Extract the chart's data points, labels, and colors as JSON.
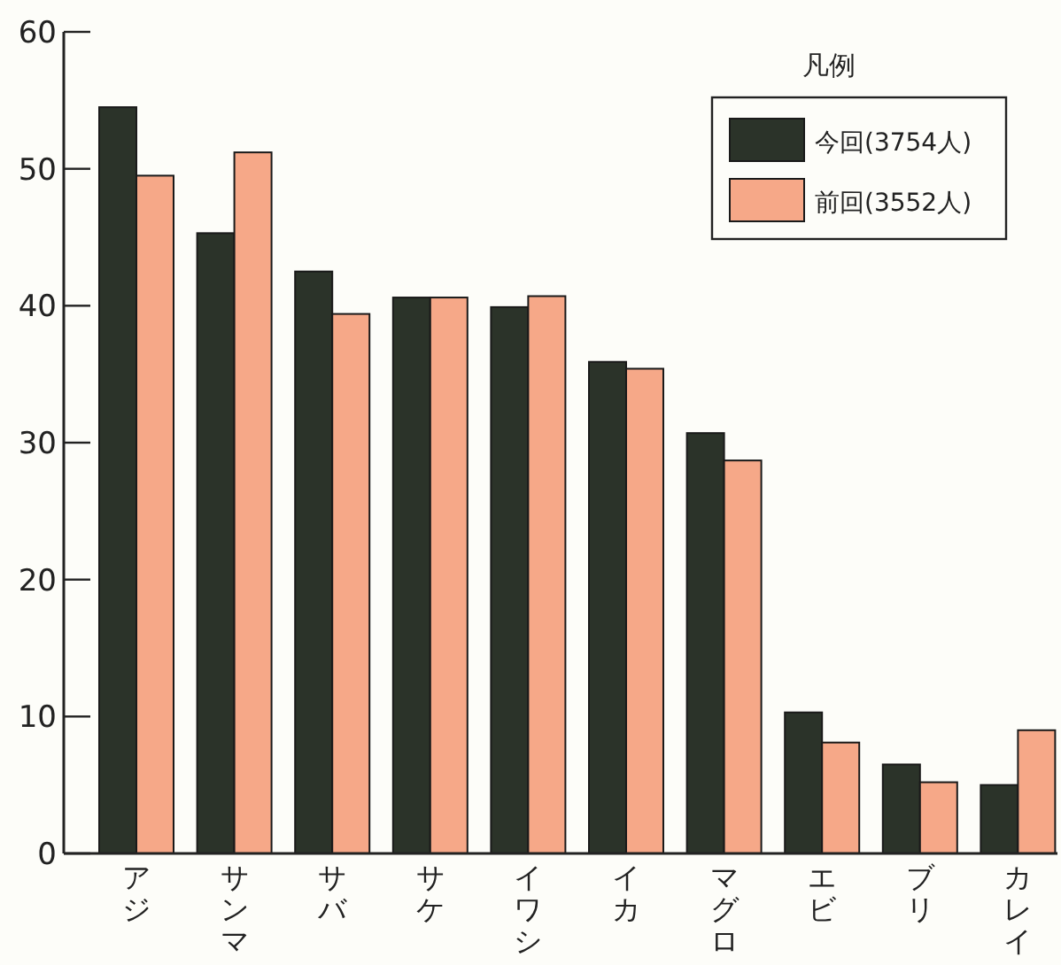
{
  "chart_data": {
    "type": "bar",
    "legend_title": "凡例",
    "legend": "top right",
    "categories": [
      "アジ",
      "サンマ",
      "サバ",
      "サケ",
      "イワシ",
      "イカ",
      "マグロ",
      "エビ",
      "ブリ",
      "カレイ"
    ],
    "series": [
      {
        "name": "今回(3754人)",
        "color": "#2b3329",
        "values": [
          54.5,
          45.3,
          42.5,
          40.6,
          39.9,
          35.9,
          30.7,
          10.3,
          6.5,
          5.0
        ]
      },
      {
        "name": "前回(3552人)",
        "color": "#f6a888",
        "values": [
          49.5,
          51.2,
          39.4,
          40.6,
          40.7,
          35.4,
          28.7,
          8.1,
          5.2,
          9.0
        ]
      }
    ],
    "ylim": [
      0,
      60
    ],
    "yticks": [
      0,
      10,
      20,
      30,
      40,
      50,
      60
    ]
  }
}
